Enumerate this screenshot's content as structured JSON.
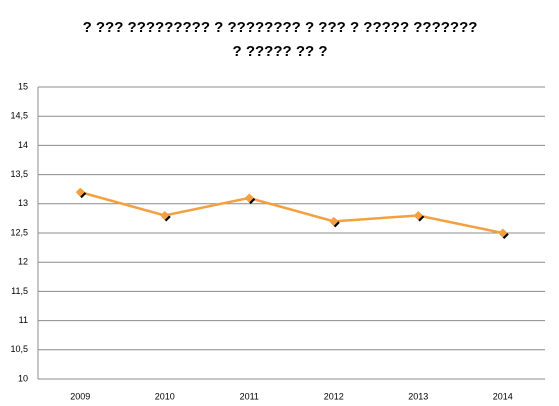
{
  "chart_data": {
    "type": "line",
    "title": [
      "? ??? ????????? ? ???????? ? ??? ? ????? ???????",
      "? ????? ?? ?"
    ],
    "categories": [
      "2009",
      "2010",
      "2011",
      "2012",
      "2013",
      "2014"
    ],
    "values": [
      13.2,
      12.8,
      13.1,
      12.7,
      12.8,
      12.5
    ],
    "color": "#f5a040",
    "ylim": [
      10,
      15
    ],
    "yticks": [
      10,
      {
        "value": 10.5,
        "label": "10,5"
      },
      11,
      {
        "value": 11.5,
        "label": "11,5"
      },
      12,
      {
        "value": 12.5,
        "label": "12,5"
      },
      13,
      {
        "value": 13.5,
        "label": "13,5"
      },
      14,
      {
        "value": 14.5,
        "label": "14,5"
      },
      15
    ],
    "grid": true
  }
}
